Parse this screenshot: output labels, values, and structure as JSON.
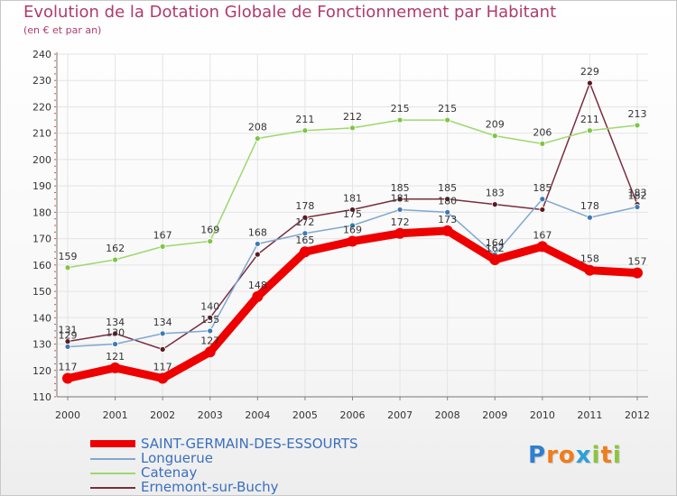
{
  "chart_data": {
    "type": "line",
    "title": "Evolution de la Dotation Globale de Fonctionnement par Habitant",
    "subtitle": "(en € et par an)",
    "xlabel": "",
    "ylabel": "",
    "categories": [
      "2000",
      "2001",
      "2002",
      "2003",
      "2004",
      "2005",
      "2006",
      "2007",
      "2008",
      "2009",
      "2010",
      "2011",
      "2012"
    ],
    "y_ticks": [
      "110",
      "120",
      "130",
      "140",
      "150",
      "160",
      "170",
      "180",
      "190",
      "200",
      "210",
      "220",
      "230",
      "240"
    ],
    "ylim": [
      110,
      240
    ],
    "grid": true,
    "series": [
      {
        "name": "Ernemont-sur-Buchy",
        "color": "#7a2d3e",
        "marker_color": "#5a1a22",
        "values": [
          131,
          134,
          128,
          140,
          164,
          178,
          181,
          185,
          185,
          183,
          181,
          229,
          183
        ],
        "labels": [
          "131",
          "134",
          "",
          "140",
          "",
          "178",
          "181",
          "185",
          "185",
          "183",
          "",
          "229",
          "183"
        ]
      },
      {
        "name": "Catenay",
        "color": "#9ed86f",
        "marker_color": "#7cc644",
        "values": [
          159,
          162,
          167,
          169,
          208,
          211,
          212,
          215,
          215,
          209,
          206,
          211,
          213
        ],
        "labels": [
          "159",
          "162",
          "167",
          "169",
          "208",
          "211",
          "212",
          "215",
          "215",
          "209",
          "206",
          "211",
          "213"
        ]
      },
      {
        "name": "Longuerue",
        "color": "#7fa8cf",
        "marker_color": "#3d7ab5",
        "values": [
          129,
          130,
          134,
          135,
          168,
          172,
          175,
          181,
          180,
          164,
          185,
          178,
          182
        ],
        "labels": [
          "129",
          "130",
          "134",
          "135",
          "168",
          "172",
          "175",
          "181",
          "180",
          "164",
          "185",
          "178",
          "182"
        ]
      },
      {
        "name": "SAINT-GERMAIN-DES-ESSOURTS",
        "color": "#ee0000",
        "marker_color": "#ee0000",
        "values": [
          117,
          121,
          117,
          127,
          148,
          165,
          169,
          172,
          173,
          162,
          167,
          158,
          157
        ],
        "labels": [
          "117",
          "121",
          "117",
          "127",
          "148",
          "165",
          "169",
          "172",
          "173",
          "162",
          "167",
          "158",
          "157"
        ]
      }
    ],
    "legend": [
      "SAINT-GERMAIN-DES-ESSOURTS",
      "Longuerue",
      "Catenay",
      "Ernemont-sur-Buchy"
    ],
    "legend_position": "bottom-left"
  },
  "logo": {
    "letters": [
      "P",
      "r",
      "o",
      "x",
      "i",
      "t",
      "i"
    ],
    "colors": [
      "#2f7fd0",
      "#ef7d1a",
      "#ef7d1a",
      "#2f9fd8",
      "#8bc53f",
      "#ef7d1a",
      "#8bc53f"
    ]
  }
}
